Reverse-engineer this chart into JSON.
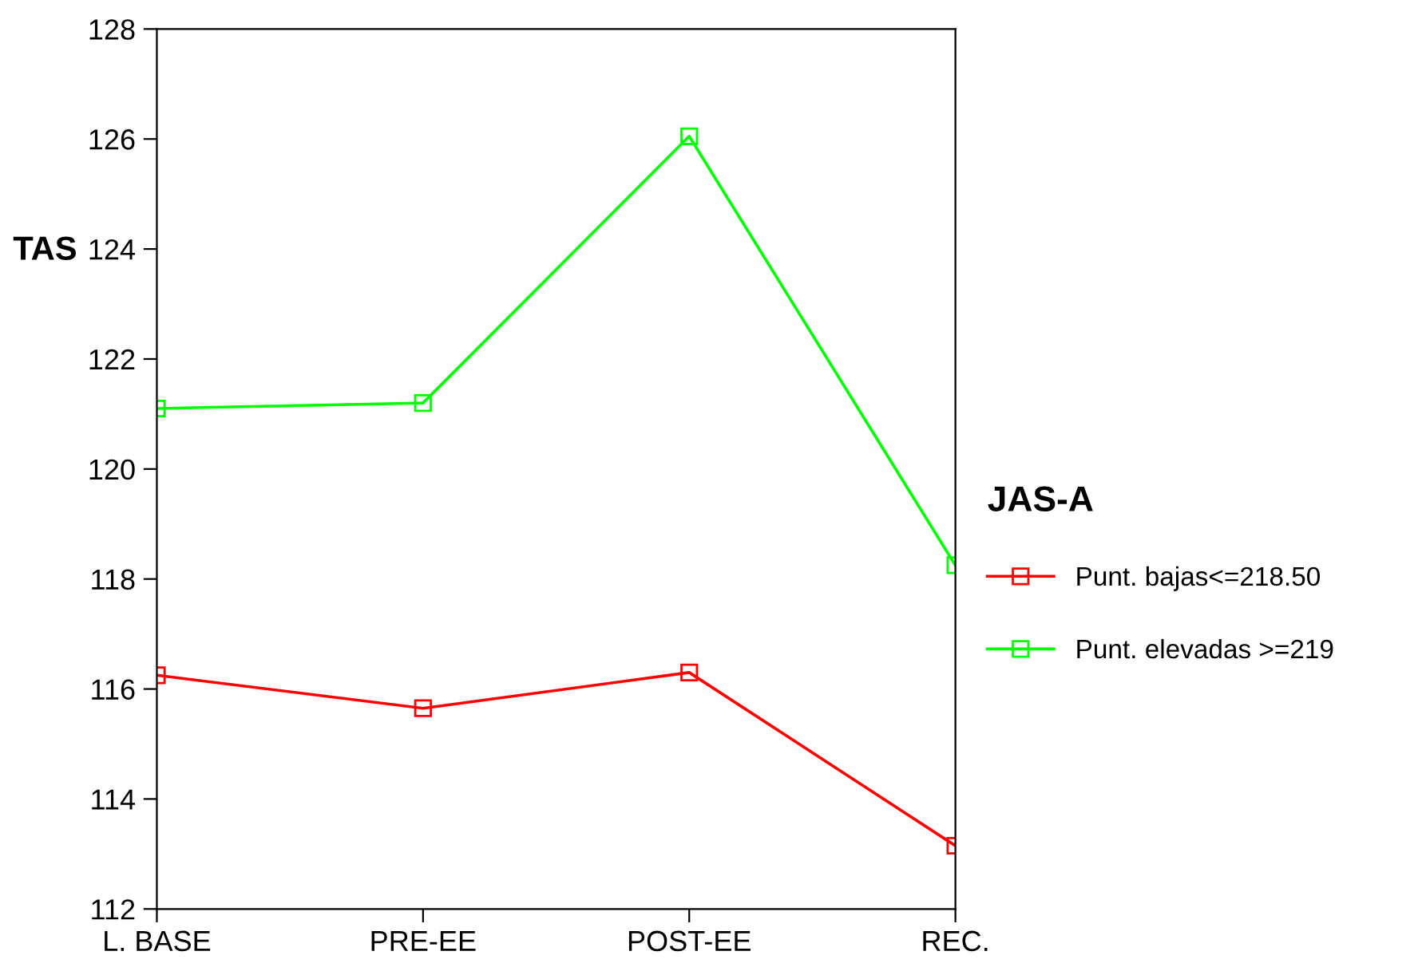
{
  "chart_data": {
    "type": "line",
    "ylabel": "TAS",
    "legend_title": "JAS-A",
    "categories": [
      "L. BASE",
      "PRE-EE",
      "POST-EE",
      "REC."
    ],
    "series": [
      {
        "name": "Punt. bajas<=218.50",
        "color": "#ff0000",
        "values": [
          116.25,
          115.65,
          116.3,
          113.15
        ]
      },
      {
        "name": "Punt. elevadas >=219",
        "color": "#00ff00",
        "values": [
          121.1,
          121.2,
          126.05,
          118.25
        ]
      }
    ],
    "ylim": [
      112,
      128
    ],
    "yticks": [
      112,
      114,
      116,
      118,
      120,
      122,
      124,
      126,
      128
    ],
    "grid": false,
    "legend": "right",
    "marker": "square",
    "line_style": "solid"
  }
}
